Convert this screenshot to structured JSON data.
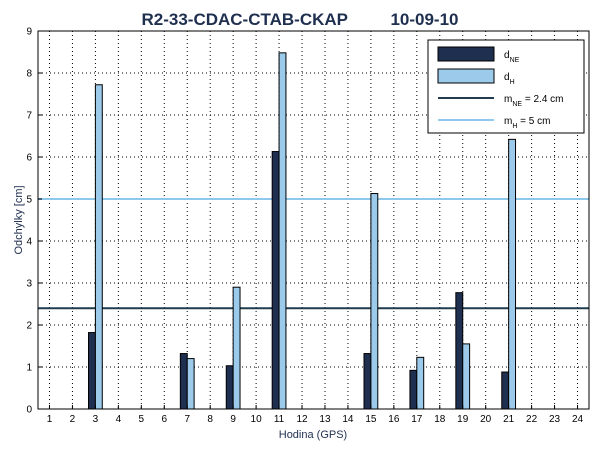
{
  "chart_data": {
    "type": "bar",
    "title": "R2-33-CDAC-CTAB-CKAP",
    "date": "10-09-10",
    "xlabel": "Hodina (GPS)",
    "ylabel": "Odchylky [cm]",
    "xlim": [
      0.5,
      24.5
    ],
    "ylim": [
      0,
      9
    ],
    "x_ticks": [
      "1",
      "2",
      "3",
      "4",
      "5",
      "6",
      "7",
      "8",
      "9",
      "10",
      "11",
      "12",
      "13",
      "14",
      "15",
      "16",
      "17",
      "18",
      "19",
      "20",
      "21",
      "22",
      "23",
      "24"
    ],
    "y_ticks": [
      "0",
      "1",
      "2",
      "3",
      "4",
      "5",
      "6",
      "7",
      "8",
      "9"
    ],
    "grid": true,
    "legend_position": "top-right",
    "series": [
      {
        "name_main": "d",
        "name_sub": "NE",
        "color": "#1f2f4f",
        "points": [
          {
            "x": 3,
            "y": 1.82
          },
          {
            "x": 7,
            "y": 1.32
          },
          {
            "x": 9,
            "y": 1.03
          },
          {
            "x": 11,
            "y": 6.13
          },
          {
            "x": 15,
            "y": 1.32
          },
          {
            "x": 17,
            "y": 0.92
          },
          {
            "x": 19,
            "y": 2.77
          },
          {
            "x": 21,
            "y": 0.88
          }
        ]
      },
      {
        "name_main": "d",
        "name_sub": "H",
        "color": "#9ccaea",
        "points": [
          {
            "x": 3,
            "y": 7.72
          },
          {
            "x": 7,
            "y": 1.2
          },
          {
            "x": 9,
            "y": 2.9
          },
          {
            "x": 11,
            "y": 8.48
          },
          {
            "x": 15,
            "y": 5.13
          },
          {
            "x": 17,
            "y": 1.23
          },
          {
            "x": 19,
            "y": 1.55
          },
          {
            "x": 21,
            "y": 6.42
          }
        ]
      }
    ],
    "reference_lines": [
      {
        "name_main": "m",
        "name_sub": "NE",
        "name_suffix": " = 2.4 cm",
        "value": 2.4,
        "color": "#1f3d4f"
      },
      {
        "name_main": "m",
        "name_sub": "H",
        "name_suffix": " = 5 cm",
        "value": 5,
        "color": "#8ec8ec"
      }
    ]
  }
}
